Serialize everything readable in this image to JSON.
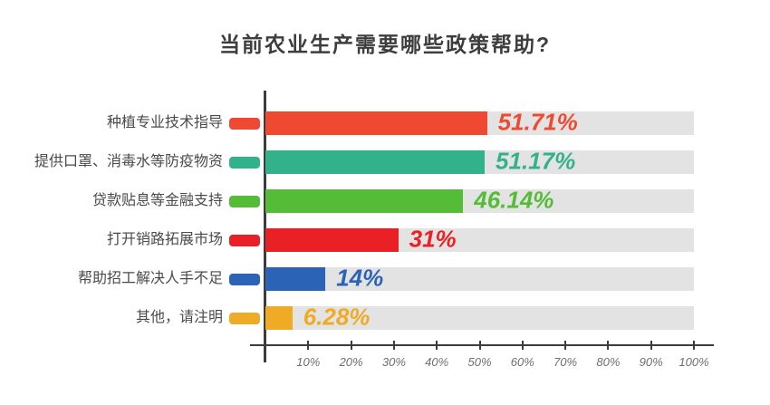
{
  "title": "当前农业生产需要哪些政策帮助?",
  "chart_data": {
    "type": "bar",
    "orientation": "horizontal",
    "title": "当前农业生产需要哪些政策帮助?",
    "categories": [
      "种植专业技术指导",
      "提供口罩、消毒水等防疫物资",
      "贷款贴息等金融支持",
      "打开销路拓展市场",
      "帮助招工解决人手不足",
      "其他，请注明"
    ],
    "values": [
      51.71,
      51.17,
      46.14,
      31,
      14,
      6.28
    ],
    "value_labels": [
      "51.71%",
      "51.17%",
      "46.14%",
      "31%",
      "14%",
      "6.28%"
    ],
    "bar_colors": [
      "#ef4a31",
      "#32b28a",
      "#55bc38",
      "#e92127",
      "#2b63b6",
      "#efab26"
    ],
    "track_color": "#e4e3e3",
    "axis_color": "#3c3c3c",
    "xlim": [
      0,
      100
    ],
    "x_ticks": [
      "10%",
      "20%",
      "30%",
      "40%",
      "50%",
      "60%",
      "70%",
      "80%",
      "90%",
      "100%"
    ],
    "grid": false,
    "legend": "none"
  }
}
